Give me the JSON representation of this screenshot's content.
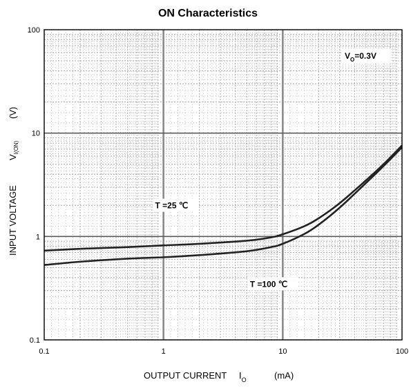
{
  "chart_data": {
    "type": "line",
    "title": "ON Characteristics",
    "xlabel": {
      "text": "OUTPUT CURRENT",
      "symbol": "I",
      "subscript": "O",
      "unit": "(mA)"
    },
    "ylabel": {
      "text": "INPUT VOLTAGE",
      "symbol": "V",
      "subscript": "I(ON)",
      "unit": "(V)"
    },
    "x_scale": "log",
    "y_scale": "log",
    "xlim": [
      0.1,
      100
    ],
    "ylim": [
      0.1,
      100
    ],
    "x_ticks": [
      0.1,
      1,
      10,
      100
    ],
    "x_tick_labels": [
      "0.1",
      "1",
      "10",
      "100"
    ],
    "y_ticks": [
      0.1,
      1,
      10,
      100
    ],
    "y_tick_labels": [
      "0.1",
      "1",
      "10",
      "100"
    ],
    "grid": true,
    "condition": {
      "symbol": "V",
      "subscript": "O",
      "value": "=0.3V"
    },
    "series": [
      {
        "name": "T =25 ℃",
        "x": [
          0.1,
          0.2,
          0.5,
          1,
          2,
          5,
          8,
          10,
          15,
          20,
          30,
          50,
          70,
          100
        ],
        "y": [
          0.73,
          0.76,
          0.79,
          0.82,
          0.85,
          0.91,
          0.98,
          1.05,
          1.25,
          1.5,
          2.1,
          3.5,
          5.0,
          7.6
        ]
      },
      {
        "name": "T =100 ℃",
        "x": [
          0.1,
          0.2,
          0.5,
          1,
          2,
          5,
          8,
          10,
          15,
          20,
          30,
          50,
          70,
          100
        ],
        "y": [
          0.53,
          0.57,
          0.61,
          0.63,
          0.66,
          0.72,
          0.79,
          0.85,
          1.05,
          1.3,
          1.9,
          3.3,
          4.8,
          7.3
        ]
      }
    ],
    "annotations": [
      {
        "text": "T =25 ℃",
        "x": 0.85,
        "y": 1.9
      },
      {
        "text": "T =100 ℃",
        "x": 5.3,
        "y": 0.33
      }
    ],
    "colors": {
      "line": "#222222",
      "major_grid": "#5a5a5a",
      "minor_grid": "#b4b4b4"
    }
  }
}
